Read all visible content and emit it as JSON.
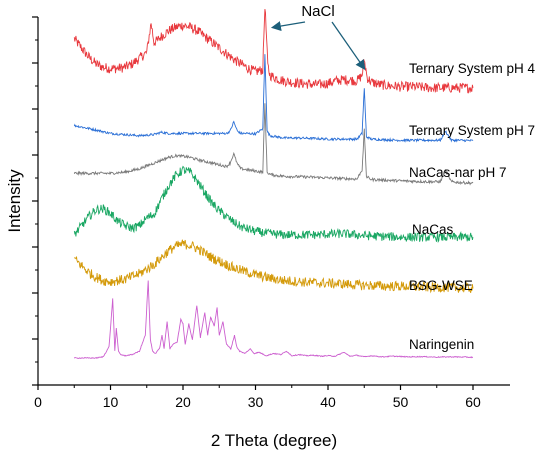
{
  "chart_data": {
    "type": "line",
    "xlabel": "2 Theta (degree)",
    "ylabel": "Intensity",
    "xlim": [
      0,
      60
    ],
    "xticks": [
      0,
      10,
      20,
      30,
      40,
      50,
      60
    ],
    "grid": false,
    "series": [
      {
        "name": "Ternary System pH 4",
        "color": "#e8383d",
        "offset": 10.9,
        "x": [
          5,
          6,
          7,
          8,
          9,
          10,
          11,
          12,
          13,
          14,
          15,
          15.6,
          16,
          16.4,
          17,
          18,
          19,
          20,
          21,
          22,
          23,
          24,
          25,
          26,
          27,
          28,
          29,
          30,
          31,
          31.3,
          31.7,
          32,
          33,
          34,
          35,
          36,
          37,
          38,
          39,
          40,
          41,
          42,
          43,
          44,
          44.7,
          45.0,
          45.4,
          46,
          47,
          48,
          50,
          52,
          54,
          56,
          58,
          60
        ],
        "y": [
          3.1,
          2.7,
          2.3,
          2.0,
          1.85,
          1.8,
          1.8,
          1.85,
          2.0,
          2.25,
          2.5,
          3.8,
          2.95,
          3.0,
          3.2,
          3.45,
          3.6,
          3.7,
          3.6,
          3.45,
          3.2,
          2.95,
          2.7,
          2.45,
          2.2,
          2.0,
          1.8,
          1.65,
          1.75,
          4.6,
          1.9,
          1.5,
          1.35,
          1.25,
          1.2,
          1.15,
          1.12,
          1.1,
          1.1,
          1.15,
          1.25,
          1.3,
          1.3,
          1.25,
          1.5,
          2.2,
          1.4,
          1.2,
          1.1,
          1.05,
          1.0,
          1.0,
          0.95,
          0.95,
          0.95,
          0.95
        ]
      },
      {
        "name": "Ternary System pH 7",
        "color": "#2a6fd6",
        "offset": 9.25,
        "x": [
          5,
          8,
          10,
          12,
          14,
          16,
          17,
          18,
          20,
          22,
          24,
          26,
          26.5,
          27,
          27.5,
          28,
          29,
          30,
          31,
          31.3,
          31.6,
          32,
          33,
          34,
          36,
          38,
          40,
          42,
          44,
          44.7,
          45.0,
          45.3,
          46,
          48,
          50,
          52,
          54,
          55.5,
          56.2,
          57,
          58,
          60
        ],
        "y": [
          0.95,
          0.75,
          0.6,
          0.55,
          0.5,
          0.55,
          0.65,
          0.6,
          0.6,
          0.6,
          0.6,
          0.6,
          0.7,
          1.1,
          0.7,
          0.6,
          0.6,
          0.58,
          0.8,
          4.1,
          0.7,
          0.5,
          0.45,
          0.4,
          0.4,
          0.38,
          0.35,
          0.35,
          0.35,
          0.6,
          2.6,
          0.45,
          0.35,
          0.32,
          0.3,
          0.3,
          0.3,
          0.3,
          0.7,
          0.3,
          0.3,
          0.28
        ]
      },
      {
        "name": "NaCas-nar pH 7",
        "color": "#7a7a7a",
        "offset": 7.95,
        "x": [
          5,
          8,
          10,
          12,
          14,
          16,
          18,
          19,
          20,
          21,
          22,
          24,
          26,
          26.5,
          27,
          27.5,
          28,
          29,
          30,
          31,
          31.3,
          31.6,
          32,
          33,
          34,
          36,
          38,
          40,
          42,
          44,
          44.7,
          45.0,
          45.3,
          46,
          48,
          50,
          52,
          54,
          55.5,
          56.2,
          57,
          58,
          60
        ],
        "y": [
          0.15,
          0.15,
          0.15,
          0.2,
          0.35,
          0.6,
          0.85,
          0.92,
          0.9,
          0.85,
          0.75,
          0.6,
          0.45,
          0.6,
          1.0,
          0.55,
          0.35,
          0.3,
          0.25,
          0.2,
          3.2,
          0.2,
          0.1,
          0.05,
          0.02,
          0.0,
          -0.02,
          -0.05,
          -0.08,
          -0.1,
          0.3,
          2.05,
          0.0,
          -0.12,
          -0.15,
          -0.18,
          -0.2,
          -0.22,
          -0.22,
          0.3,
          -0.22,
          -0.25,
          -0.28
        ]
      },
      {
        "name": "NaCas",
        "color": "#1aa763",
        "offset": 5.25,
        "x": [
          5,
          6,
          7,
          8,
          9,
          10,
          11,
          12,
          13,
          14,
          15,
          16,
          17,
          18,
          19,
          20,
          21,
          22,
          23,
          24,
          25,
          26,
          27,
          28,
          29,
          30,
          32,
          34,
          36,
          38,
          40,
          42,
          44,
          46,
          48,
          50,
          52,
          54,
          56,
          58,
          60
        ],
        "y": [
          0.15,
          0.55,
          0.95,
          1.25,
          1.3,
          1.1,
          0.75,
          0.55,
          0.45,
          0.55,
          0.9,
          1.05,
          1.7,
          2.3,
          2.75,
          3.0,
          2.9,
          2.5,
          2.0,
          1.55,
          1.2,
          0.95,
          0.7,
          0.5,
          0.4,
          0.3,
          0.2,
          0.15,
          0.15,
          0.15,
          0.18,
          0.2,
          0.15,
          0.1,
          0.08,
          0.05,
          0.05,
          0.05,
          0.05,
          0.05,
          0.05
        ]
      },
      {
        "name": "BSG-WSE",
        "color": "#d49a0a",
        "offset": 2.9,
        "x": [
          5,
          6,
          7,
          8,
          9,
          10,
          12,
          14,
          16,
          17,
          18,
          19,
          20,
          21,
          22,
          23,
          24,
          25,
          26,
          27,
          28,
          29,
          30,
          32,
          34,
          36,
          38,
          40,
          42,
          44,
          46,
          48,
          50,
          52,
          54,
          56,
          58,
          60
        ],
        "y": [
          1.45,
          1.15,
          0.85,
          0.65,
          0.5,
          0.45,
          0.55,
          0.8,
          1.2,
          1.5,
          1.8,
          2.0,
          2.1,
          2.05,
          1.9,
          1.7,
          1.5,
          1.35,
          1.2,
          1.05,
          0.95,
          0.85,
          0.75,
          0.6,
          0.5,
          0.45,
          0.4,
          0.38,
          0.35,
          0.3,
          0.28,
          0.25,
          0.25,
          0.22,
          0.2,
          0.2,
          0.18,
          0.15
        ]
      },
      {
        "name": "Naringenin",
        "color": "#cc5fcf",
        "offset": 0.0,
        "x": [
          5,
          8,
          9,
          9.8,
          10.3,
          10.6,
          10.8,
          11.1,
          11.4,
          12,
          13,
          14,
          14.8,
          15.2,
          15.5,
          15.8,
          16.2,
          16.8,
          17.1,
          17.4,
          17.8,
          18.2,
          18.6,
          19.2,
          19.7,
          20.0,
          20.3,
          20.8,
          21.3,
          21.9,
          22.4,
          23.0,
          23.4,
          23.8,
          24.3,
          24.7,
          25.0,
          25.5,
          26.0,
          26.6,
          27.1,
          27.4,
          27.8,
          28.5,
          29.3,
          29.8,
          30.5,
          31.5,
          32.5,
          33.5,
          34.3,
          35.0,
          36.0,
          37.0,
          38.0,
          39.0,
          40.0,
          41.0,
          42.2,
          43.0,
          44.0,
          45.0,
          46.0,
          47.5,
          49.0,
          51.0,
          53.0,
          55.0,
          57.0,
          59.0,
          60.0
        ],
        "y": [
          0.0,
          0.0,
          0.05,
          0.5,
          2.6,
          0.3,
          1.3,
          0.3,
          0.15,
          0.1,
          0.15,
          0.3,
          1.0,
          3.4,
          0.8,
          0.3,
          0.2,
          0.45,
          1.0,
          0.4,
          1.6,
          0.4,
          0.6,
          0.7,
          1.7,
          1.5,
          0.6,
          1.5,
          0.8,
          2.3,
          0.9,
          2.0,
          1.0,
          1.8,
          1.4,
          2.2,
          1.0,
          1.6,
          0.6,
          0.4,
          1.0,
          0.5,
          0.3,
          0.2,
          0.4,
          0.2,
          0.25,
          0.1,
          0.2,
          0.15,
          0.3,
          0.1,
          0.15,
          0.1,
          0.12,
          0.08,
          0.1,
          0.08,
          0.25,
          0.08,
          0.12,
          0.05,
          0.1,
          0.05,
          0.08,
          0.05,
          0.06,
          0.04,
          0.05,
          0.04,
          0.03
        ]
      }
    ],
    "annotation": {
      "text": "NaCl",
      "color": "#1c5f7a",
      "arrow_targets": [
        {
          "x": 31.3,
          "y": 14.5
        },
        {
          "x": 45.0,
          "y": 12.7
        }
      ],
      "label_at": {
        "x": 38.5,
        "y": 16.6
      }
    }
  }
}
